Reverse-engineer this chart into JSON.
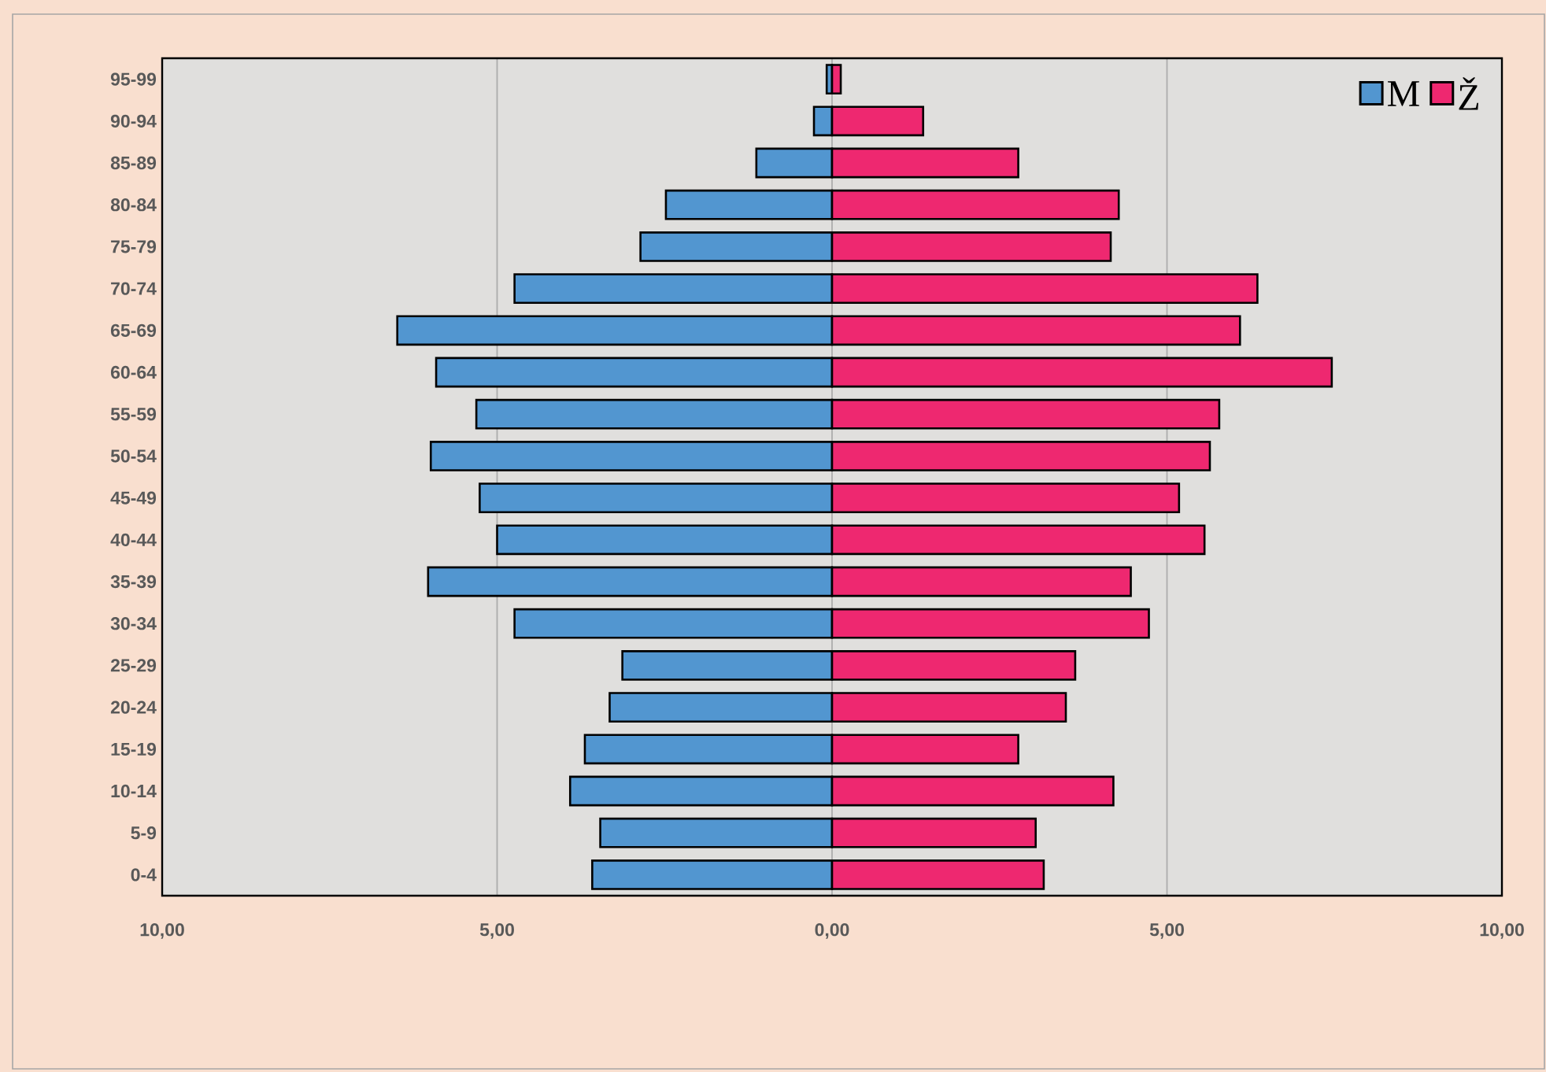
{
  "chart_data": {
    "type": "bar",
    "orientation": "horizontal",
    "categories": [
      "95-99",
      "90-94",
      "85-89",
      "80-84",
      "75-79",
      "70-74",
      "65-69",
      "60-64",
      "55-59",
      "50-54",
      "45-49",
      "40-44",
      "35-39",
      "30-34",
      "25-29",
      "20-24",
      "15-19",
      "10-14",
      "5-9",
      "0-4"
    ],
    "series": [
      {
        "name": "M",
        "color": "#5296d0",
        "values": [
          -0.08,
          -0.27,
          -1.13,
          -2.48,
          -2.86,
          -4.74,
          -6.49,
          -5.91,
          -5.31,
          -5.99,
          -5.26,
          -5.0,
          -6.03,
          -4.74,
          -3.13,
          -3.32,
          -3.69,
          -3.91,
          -3.46,
          -3.58
        ]
      },
      {
        "name": "Ž",
        "color": "#ee2870",
        "values": [
          0.13,
          1.36,
          2.78,
          4.28,
          4.16,
          6.35,
          6.09,
          7.46,
          5.78,
          5.64,
          5.18,
          5.56,
          4.46,
          4.73,
          3.63,
          3.49,
          2.78,
          4.2,
          3.04,
          3.16
        ]
      }
    ],
    "xlim": [
      -10,
      10
    ],
    "xticks": [
      {
        "value": -10,
        "label": "10,00"
      },
      {
        "value": -5,
        "label": "5,00"
      },
      {
        "value": 0,
        "label": "0,00"
      },
      {
        "value": 5,
        "label": "5,00"
      },
      {
        "value": 10,
        "label": "10,00"
      }
    ],
    "grid": "x",
    "legend": "top right",
    "stacked": true
  }
}
